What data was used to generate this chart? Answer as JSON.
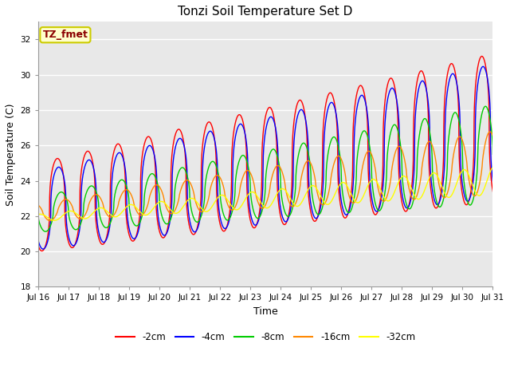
{
  "title": "Tonzi Soil Temperature Set D",
  "xlabel": "Time",
  "ylabel": "Soil Temperature (C)",
  "ylim": [
    18,
    33
  ],
  "xlim": [
    0,
    15
  ],
  "yticks": [
    18,
    20,
    22,
    24,
    26,
    28,
    30,
    32
  ],
  "xtick_labels": [
    "Jul 16",
    "Jul 17",
    "Jul 18",
    "Jul 19",
    "Jul 20",
    "Jul 21",
    "Jul 22",
    "Jul 23",
    "Jul 24",
    "Jul 25",
    "Jul 26",
    "Jul 27",
    "Jul 28",
    "Jul 29",
    "Jul 30",
    "Jul 31"
  ],
  "annotation_text": "TZ_fmet",
  "annotation_color": "#8B0000",
  "annotation_bg": "#FFFFCC",
  "annotation_border": "#CCCC00",
  "fig_bg": "#FFFFFF",
  "plot_bg": "#E8E8E8",
  "series": [
    {
      "label": "-2cm",
      "color": "#FF0000",
      "linewidth": 1.0
    },
    {
      "label": "-4cm",
      "color": "#0000FF",
      "linewidth": 1.0
    },
    {
      "label": "-8cm",
      "color": "#00CC00",
      "linewidth": 1.0
    },
    {
      "label": "-16cm",
      "color": "#FF8800",
      "linewidth": 1.0
    },
    {
      "label": "-32cm",
      "color": "#FFFF00",
      "linewidth": 1.0
    }
  ],
  "grid_color": "#FFFFFF",
  "grid_linewidth": 1.0,
  "title_fontsize": 11,
  "label_fontsize": 9,
  "tick_fontsize": 7.5
}
